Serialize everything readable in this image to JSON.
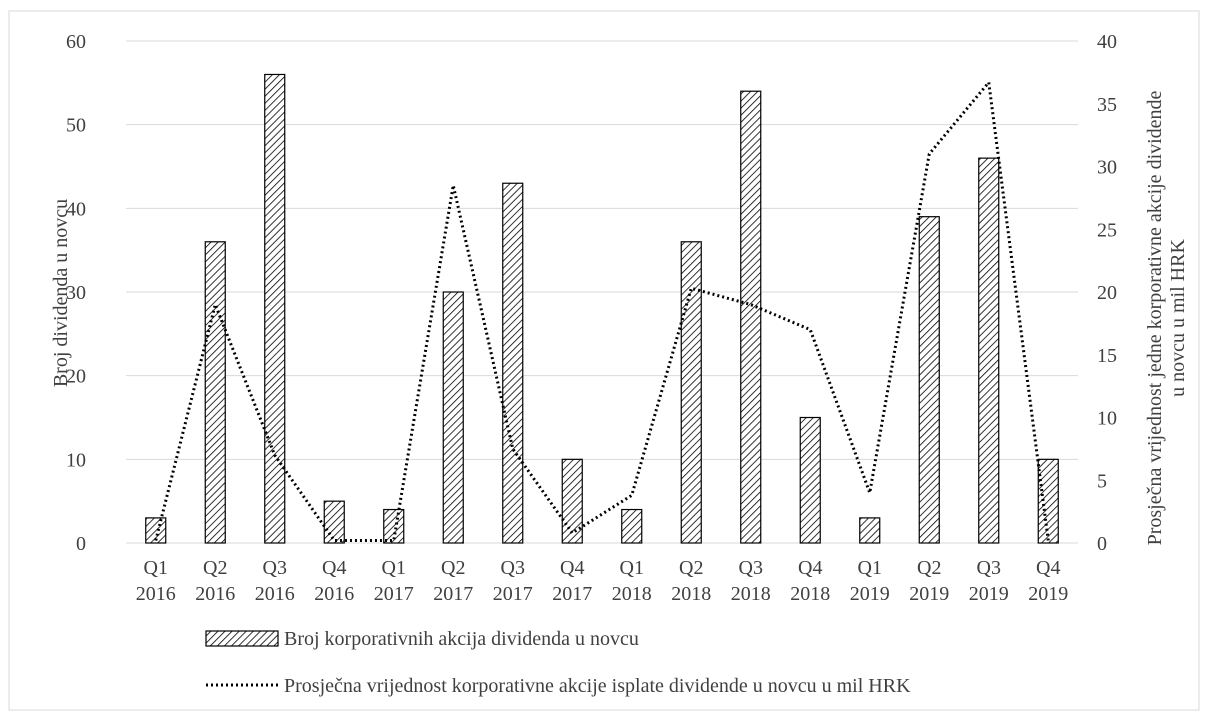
{
  "chart_data": {
    "type": "bar",
    "title": "",
    "categories": [
      [
        "Q1",
        "2016"
      ],
      [
        "Q2",
        "2016"
      ],
      [
        "Q3",
        "2016"
      ],
      [
        "Q4",
        "2016"
      ],
      [
        "Q1",
        "2017"
      ],
      [
        "Q2",
        "2017"
      ],
      [
        "Q3",
        "2017"
      ],
      [
        "Q4",
        "2017"
      ],
      [
        "Q1",
        "2018"
      ],
      [
        "Q2",
        "2018"
      ],
      [
        "Q3",
        "2018"
      ],
      [
        "Q4",
        "2018"
      ],
      [
        "Q1",
        "2019"
      ],
      [
        "Q2",
        "2019"
      ],
      [
        "Q3",
        "2019"
      ],
      [
        "Q4",
        "2019"
      ]
    ],
    "ylabel": "Broj dividenda u novcu",
    "ylabel_right": [
      "Prosječna vrijednost jedne korporativne akcije dividende",
      "u novcu u mil HRK"
    ],
    "ylim": [
      0,
      60
    ],
    "y_ticks": [
      "0",
      "10",
      "20",
      "30",
      "40",
      "50",
      "60"
    ],
    "ylim_right": [
      0,
      40
    ],
    "y_ticks_right": [
      "0",
      "5",
      "10",
      "15",
      "20",
      "25",
      "30",
      "35",
      "40"
    ],
    "grid": true,
    "legend_position": "bottom",
    "series": [
      {
        "name": "Broj korporativnih akcija dividenda u novcu",
        "type": "bar",
        "axis": "left",
        "pattern": "diagonal-hatch",
        "values": [
          3,
          36,
          56,
          5,
          4,
          30,
          43,
          10,
          4,
          36,
          54,
          15,
          3,
          39,
          46,
          10
        ]
      },
      {
        "name": "Prosječna vrijednost korporativne akcije isplate dividende u novcu u mil HRK",
        "type": "line",
        "axis": "right",
        "style": "dotted",
        "values": [
          0.2,
          19,
          7,
          0.2,
          0.2,
          28.5,
          7.5,
          0.8,
          3.8,
          20.3,
          19,
          17,
          4,
          31,
          36.7,
          0.2
        ]
      }
    ]
  },
  "colors": {
    "bar_stroke": "#000000",
    "line": "#000000",
    "grid": "#d9d9d9",
    "text": "#404040",
    "frame": "#d9d9d9"
  }
}
